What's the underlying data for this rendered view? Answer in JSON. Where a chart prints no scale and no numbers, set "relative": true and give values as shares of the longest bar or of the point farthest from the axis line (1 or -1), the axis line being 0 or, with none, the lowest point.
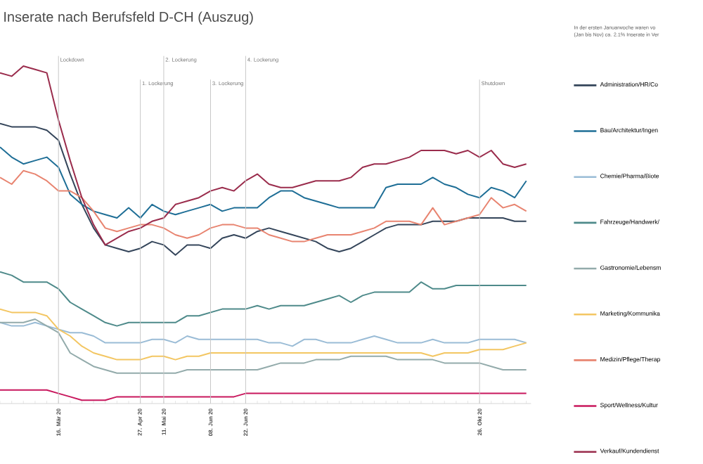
{
  "chart_data": {
    "type": "line",
    "title": "Inserate nach Berufsfeld D-CH (Auszug)",
    "relative": true,
    "legend": "right",
    "marker": "none",
    "line_style": "solid",
    "annotations": [
      "In der ersten Januarwoche waren vo",
      "(Jan bis Nov) ca. 2.1% Inserate in Ver"
    ],
    "categories": [
      null,
      null,
      null,
      null,
      null,
      "16. Mär 20",
      null,
      null,
      null,
      null,
      null,
      null,
      "27. Apr 20",
      null,
      "11. Mai 20",
      null,
      null,
      null,
      "08. Jun 20",
      null,
      null,
      "22. Jun 20",
      null,
      null,
      null,
      null,
      null,
      null,
      null,
      null,
      null,
      null,
      null,
      null,
      null,
      null,
      null,
      null,
      null,
      null,
      null,
      "26. Okt 20",
      null,
      null,
      null,
      null
    ],
    "ref_lines": [
      {
        "axis": "x",
        "value": "16. Mär 20",
        "label": "Lockdown"
      },
      {
        "axis": "x",
        "value": "27. Apr 20",
        "label": "1. Lockerung"
      },
      {
        "axis": "x",
        "value": "11. Mai 20",
        "label": "2. Lockerung"
      },
      {
        "axis": "x",
        "value": "08. Jun 20",
        "label": "3. Lockerung"
      },
      {
        "axis": "x",
        "value": "22. Jun 20",
        "label": "4. Lockerung"
      },
      {
        "axis": "x",
        "value": "26. Okt 20",
        "label": "Shutdown"
      }
    ],
    "series": [
      {
        "name": "Administration/HR/Co",
        "color": "#34455a",
        "values": [
          0.83,
          0.82,
          0.82,
          0.82,
          0.81,
          0.78,
          0.68,
          0.59,
          0.52,
          0.47,
          0.46,
          0.45,
          0.46,
          0.48,
          0.47,
          0.44,
          0.47,
          0.47,
          0.46,
          0.49,
          0.5,
          0.49,
          0.51,
          0.52,
          0.51,
          0.5,
          0.49,
          0.48,
          0.46,
          0.45,
          0.46,
          0.48,
          0.5,
          0.52,
          0.53,
          0.53,
          0.53,
          0.54,
          0.54,
          0.54,
          0.55,
          0.55,
          0.55,
          0.55,
          0.54,
          0.54
        ]
      },
      {
        "name": "Bau/Architektur/Ingen",
        "color": "#1e6e96",
        "values": [
          0.76,
          0.73,
          0.71,
          0.72,
          0.73,
          0.7,
          0.62,
          0.59,
          0.57,
          0.56,
          0.55,
          0.58,
          0.55,
          0.59,
          0.57,
          0.56,
          0.57,
          0.58,
          0.59,
          0.57,
          0.58,
          0.58,
          0.58,
          0.61,
          0.63,
          0.63,
          0.61,
          0.6,
          0.59,
          0.58,
          0.58,
          0.58,
          0.58,
          0.64,
          0.65,
          0.65,
          0.65,
          0.67,
          0.65,
          0.64,
          0.62,
          0.61,
          0.64,
          0.63,
          0.61,
          0.66
        ]
      },
      {
        "name": "Chemie/Pharma/Biote",
        "color": "#9abcd6",
        "values": [
          0.24,
          0.23,
          0.23,
          0.24,
          0.23,
          0.22,
          0.21,
          0.21,
          0.2,
          0.18,
          0.18,
          0.18,
          0.18,
          0.19,
          0.19,
          0.18,
          0.2,
          0.19,
          0.19,
          0.19,
          0.19,
          0.19,
          0.19,
          0.18,
          0.18,
          0.17,
          0.19,
          0.19,
          0.18,
          0.18,
          0.18,
          0.19,
          0.2,
          0.19,
          0.18,
          0.18,
          0.18,
          0.19,
          0.18,
          0.18,
          0.18,
          0.19,
          0.19,
          0.19,
          0.19,
          0.18
        ]
      },
      {
        "name": "Fahrzeuge/Handwerk/",
        "color": "#4e8a8a",
        "values": [
          0.39,
          0.38,
          0.36,
          0.36,
          0.36,
          0.34,
          0.3,
          0.28,
          0.26,
          0.24,
          0.23,
          0.24,
          0.24,
          0.24,
          0.24,
          0.24,
          0.26,
          0.26,
          0.27,
          0.28,
          0.28,
          0.28,
          0.29,
          0.28,
          0.29,
          0.29,
          0.29,
          0.3,
          0.31,
          0.32,
          0.3,
          0.32,
          0.33,
          0.33,
          0.33,
          0.33,
          0.36,
          0.34,
          0.34,
          0.35,
          0.35,
          0.35,
          0.35,
          0.35,
          0.35,
          0.35
        ]
      },
      {
        "name": "Gastronomie/Lebensm",
        "color": "#93abab",
        "values": [
          0.24,
          0.24,
          0.24,
          0.25,
          0.23,
          0.21,
          0.15,
          0.13,
          0.11,
          0.1,
          0.09,
          0.09,
          0.09,
          0.09,
          0.09,
          0.09,
          0.1,
          0.1,
          0.1,
          0.1,
          0.1,
          0.1,
          0.1,
          0.11,
          0.12,
          0.12,
          0.12,
          0.13,
          0.13,
          0.13,
          0.14,
          0.14,
          0.14,
          0.14,
          0.13,
          0.13,
          0.13,
          0.13,
          0.12,
          0.12,
          0.12,
          0.12,
          0.11,
          0.1,
          0.1,
          0.1
        ]
      },
      {
        "name": "Marketing/Kommunika",
        "color": "#f3c662",
        "values": [
          0.28,
          0.27,
          0.27,
          0.27,
          0.26,
          0.22,
          0.2,
          0.17,
          0.15,
          0.14,
          0.13,
          0.13,
          0.13,
          0.14,
          0.14,
          0.13,
          0.14,
          0.14,
          0.15,
          0.15,
          0.15,
          0.15,
          0.15,
          0.15,
          0.15,
          0.15,
          0.15,
          0.15,
          0.15,
          0.15,
          0.15,
          0.15,
          0.15,
          0.15,
          0.15,
          0.15,
          0.15,
          0.14,
          0.15,
          0.15,
          0.15,
          0.16,
          0.16,
          0.16,
          0.17,
          0.18
        ]
      },
      {
        "name": "Medizin/Pflege/Therap",
        "color": "#e88470",
        "values": [
          0.67,
          0.65,
          0.69,
          0.68,
          0.66,
          0.63,
          0.63,
          0.61,
          0.57,
          0.52,
          0.51,
          0.52,
          0.53,
          0.53,
          0.52,
          0.5,
          0.49,
          0.5,
          0.52,
          0.53,
          0.53,
          0.52,
          0.52,
          0.5,
          0.49,
          0.48,
          0.48,
          0.49,
          0.5,
          0.5,
          0.5,
          0.51,
          0.52,
          0.54,
          0.54,
          0.54,
          0.53,
          0.58,
          0.53,
          0.54,
          0.55,
          0.56,
          0.61,
          0.58,
          0.59,
          0.57
        ]
      },
      {
        "name": "Sport/Wellness/Kultur",
        "color": "#c8175d",
        "values": [
          0.04,
          0.04,
          0.04,
          0.04,
          0.04,
          0.03,
          0.02,
          0.01,
          0.01,
          0.01,
          0.02,
          0.02,
          0.02,
          0.02,
          0.02,
          0.02,
          0.02,
          0.02,
          0.02,
          0.02,
          0.02,
          0.03,
          0.03,
          0.03,
          0.03,
          0.03,
          0.03,
          0.03,
          0.03,
          0.03,
          0.03,
          0.03,
          0.03,
          0.03,
          0.03,
          0.03,
          0.03,
          0.03,
          0.03,
          0.03,
          0.03,
          0.03,
          0.03,
          0.03,
          0.03,
          0.03
        ]
      },
      {
        "name": "Verkauf/Kundendienst",
        "color": "#9a2c4c",
        "values": [
          0.98,
          0.97,
          1,
          0.99,
          0.98,
          0.84,
          0.72,
          0.61,
          0.53,
          0.47,
          0.49,
          0.51,
          0.52,
          0.54,
          0.55,
          0.59,
          0.6,
          0.61,
          0.63,
          0.64,
          0.63,
          0.66,
          0.68,
          0.65,
          0.64,
          0.64,
          0.65,
          0.66,
          0.66,
          0.66,
          0.67,
          0.7,
          0.71,
          0.71,
          0.72,
          0.73,
          0.75,
          0.75,
          0.75,
          0.74,
          0.75,
          0.73,
          0.75,
          0.71,
          0.7,
          0.71
        ]
      }
    ]
  }
}
